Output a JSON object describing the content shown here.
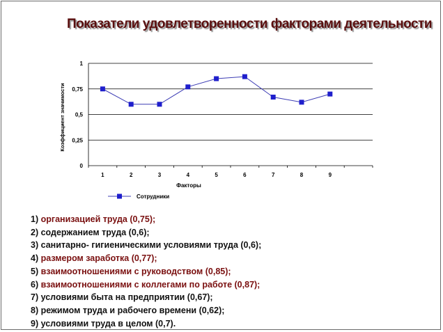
{
  "title": "Показатели удовлетворенности факторами деятельности",
  "colors": {
    "title": "#5a0f0f",
    "series": "#1f1fcc",
    "line": "#3c3cb4",
    "highlight": "#7a1010",
    "text": "#111111"
  },
  "chart_data": {
    "type": "line",
    "xlabel": "Факторы",
    "ylabel": "Коэффициент значимости",
    "categories": [
      "1",
      "2",
      "3",
      "4",
      "5",
      "6",
      "7",
      "8",
      "9"
    ],
    "x_slots": 10,
    "yticks": [
      "0",
      "0,25",
      "0,5",
      "0,75",
      "1"
    ],
    "ylim": [
      0,
      1
    ],
    "grid": "horizontal",
    "legend_position": "bottom-left",
    "series": [
      {
        "name": "Сотрудники",
        "values": [
          0.75,
          0.6,
          0.6,
          0.77,
          0.85,
          0.87,
          0.67,
          0.62,
          0.7
        ]
      }
    ]
  },
  "factors": [
    {
      "num": "1)",
      "text": "организацией труда (0,75);",
      "highlight": true
    },
    {
      "num": "2)",
      "text": "содержанием труда (0,6);",
      "highlight": false
    },
    {
      "num": "3)",
      "text": "санитарно- гигиеническими условиями труда (0,6);",
      "highlight": false
    },
    {
      "num": "4)",
      "text": "размером заработка (0,77);",
      "highlight": true
    },
    {
      "num": "5)",
      "text": "взаимоотношениями  с руководством (0,85);",
      "highlight": true
    },
    {
      "num": "6)",
      "text": "взаимоотношениями  с коллегами по работе (0,87);",
      "highlight": true
    },
    {
      "num": "7)",
      "text": "условиями быта на предприятии (0,67);",
      "highlight": false
    },
    {
      "num": "8)",
      "text": "режимом труда и рабочего времени (0,62);",
      "highlight": false
    },
    {
      "num": "9)",
      "text": "условиями труда  в целом (0,7).",
      "highlight": false
    }
  ]
}
